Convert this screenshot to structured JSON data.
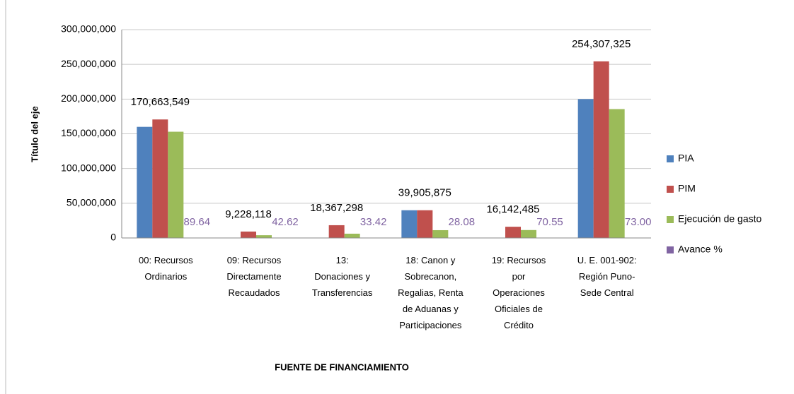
{
  "chart_data": {
    "type": "bar",
    "y_axis_label": "Título del eje",
    "x_axis_label": "FUENTE DE FINANCIAMIENTO",
    "categories": [
      "00: Recursos\nOrdinarios",
      "09: Recursos\nDirectamente\nRecaudados",
      "13:\nDonaciones y\nTransferencias",
      "18: Canon y\nSobrecanon,\nRegalias, Renta\nde Aduanas y\nParticipaciones",
      "19: Recursos\npor\nOperaciones\nOficiales de\nCrédito",
      "U. E. 001-902:\nRegión Puno-\nSede Central"
    ],
    "series": [
      {
        "name": "PIA",
        "color": "#4f81bd",
        "values": [
          160000000,
          0,
          0,
          39905875,
          0,
          200000000
        ]
      },
      {
        "name": "PIM",
        "color": "#c0504d",
        "values": [
          170663549,
          9228118,
          18367298,
          39905875,
          16142485,
          254307325
        ],
        "value_labels": [
          "170,663,549",
          "9,228,118",
          "18,367,298",
          "39,905,875",
          "16,142,485",
          "254,307,325"
        ]
      },
      {
        "name": "Ejecución de gasto",
        "color": "#9bbb59",
        "values": [
          153000000,
          3930000,
          6140000,
          11200000,
          11390000,
          185600000
        ]
      },
      {
        "name": "Avance %",
        "color": "#8064a2",
        "values": [
          89.64,
          42.62,
          33.42,
          28.08,
          70.55,
          73
        ],
        "value_labels": [
          "89.64",
          "42.62",
          "33.42",
          "28.08",
          "70.55",
          "73.00"
        ]
      }
    ],
    "ylim": [
      0,
      300000000
    ],
    "yticks": [
      0,
      {
        "value": 50000000,
        "label": "50,000,000"
      },
      {
        "value": 100000000,
        "label": "100,000,000"
      },
      {
        "value": 150000000,
        "label": "150,000,000"
      },
      {
        "value": 200000000,
        "label": "200,000,000"
      },
      {
        "value": 250000000,
        "label": "250,000,000"
      },
      {
        "value": 300000000,
        "label": "300,000,000"
      }
    ],
    "grid": true,
    "legend": "right"
  }
}
